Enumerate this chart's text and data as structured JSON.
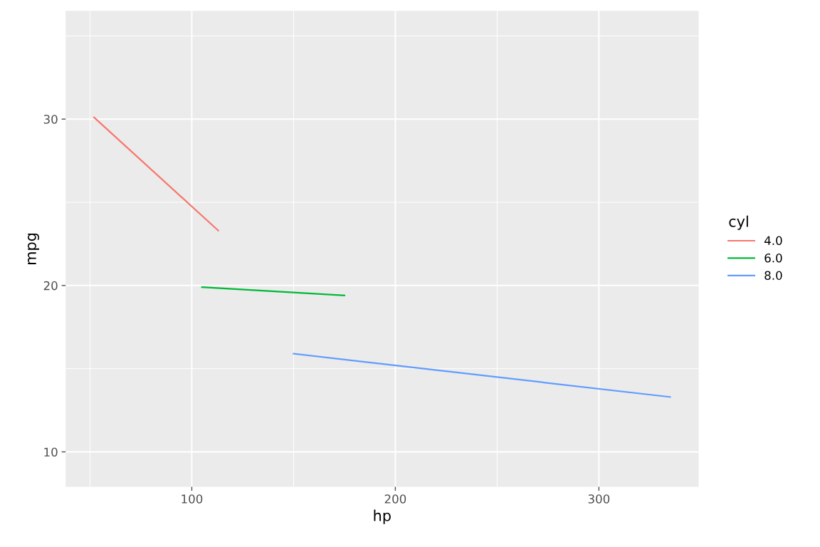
{
  "chart_data": {
    "type": "line",
    "xlabel": "hp",
    "ylabel": "mpg",
    "legend_title": "cyl",
    "series": [
      {
        "name": "4.0",
        "color": "#f8766d",
        "x": [
          52,
          113
        ],
        "values": [
          30.1,
          23.3
        ]
      },
      {
        "name": "6.0",
        "color": "#00ba38",
        "x": [
          105,
          175
        ],
        "values": [
          19.9,
          19.4
        ]
      },
      {
        "name": "8.0",
        "color": "#619cff",
        "x": [
          150,
          335
        ],
        "values": [
          15.9,
          13.3
        ]
      }
    ],
    "xlim": [
      38,
      349
    ],
    "ylim": [
      7.9,
      36.5
    ],
    "xticks": [
      100,
      200,
      300
    ],
    "yticks": [
      10,
      20,
      30
    ],
    "grid": true,
    "legend": "right",
    "marker": "none",
    "line_style": "solid"
  }
}
